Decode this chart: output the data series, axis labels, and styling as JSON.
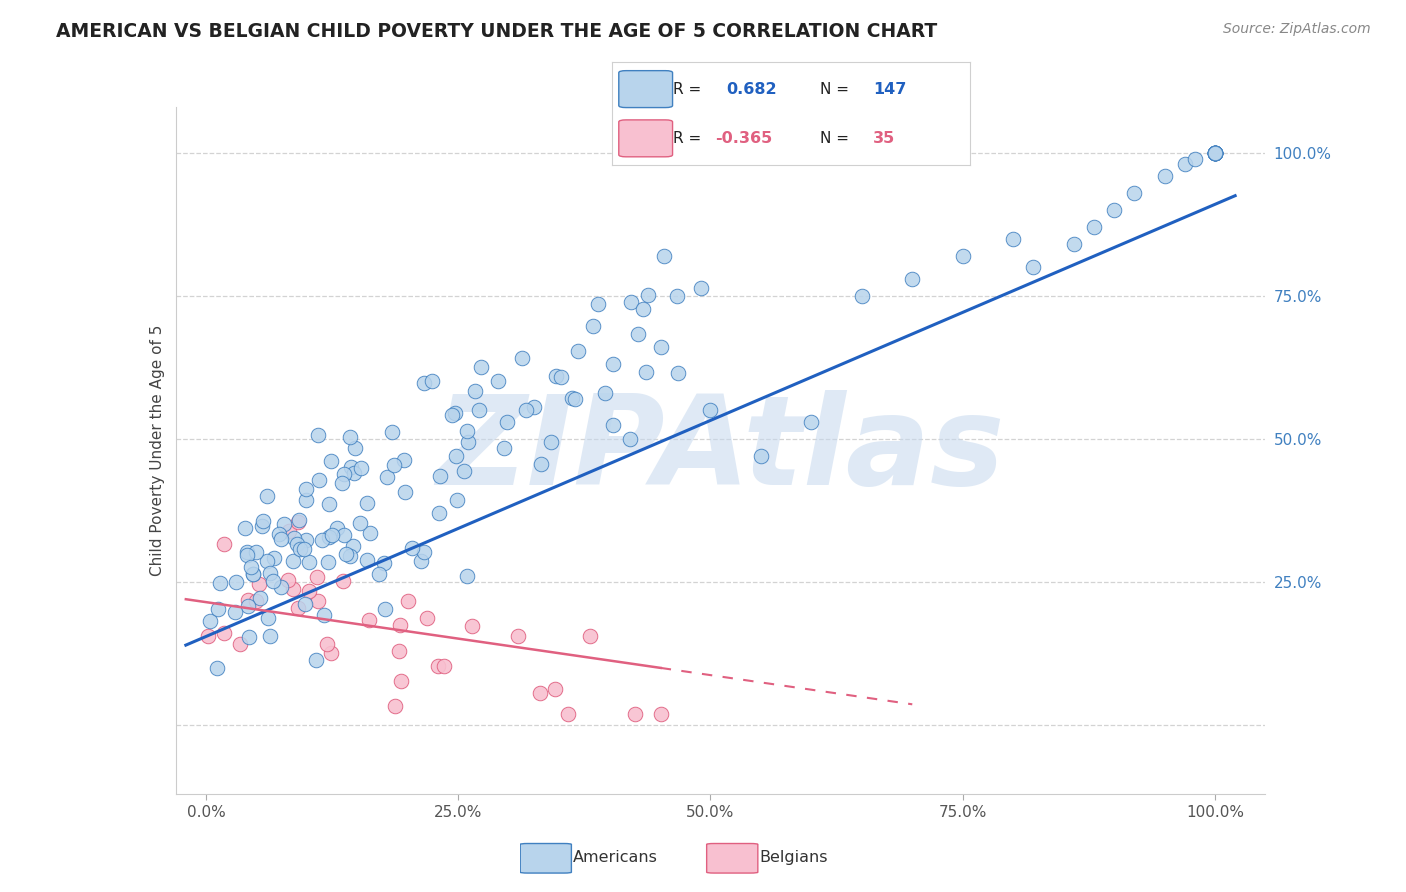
{
  "title": "AMERICAN VS BELGIAN CHILD POVERTY UNDER THE AGE OF 5 CORRELATION CHART",
  "source": "Source: ZipAtlas.com",
  "ylabel": "Child Poverty Under the Age of 5",
  "watermark": "ZIPAtlas",
  "r_american": 0.682,
  "n_american": 147,
  "r_belgian": -0.365,
  "n_belgian": 35,
  "american_fill": "#b8d4ec",
  "american_edge": "#4080c0",
  "belgian_fill": "#f8c0d0",
  "belgian_edge": "#e06080",
  "american_line": "#2060c0",
  "belgian_line": "#e06080",
  "background_color": "#ffffff",
  "grid_color": "#c8c8c8",
  "tick_color": "#4080c0",
  "legend_blue_fill": "#b8d4ec",
  "legend_blue_edge": "#4080c0",
  "legend_pink_fill": "#f8c0d0",
  "legend_pink_edge": "#e06080"
}
